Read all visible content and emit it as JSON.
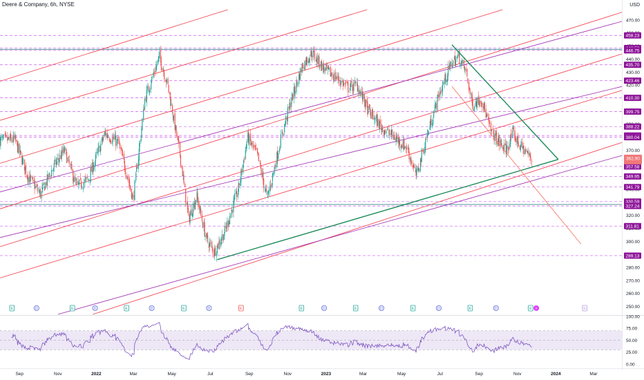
{
  "header": {
    "title": "Deere & Company, 6h, NYSE",
    "currency": "USD"
  },
  "colors": {
    "up": "#26a69a",
    "down": "#ef5350",
    "hline": "#c43cf0",
    "price_tag": "#8e1599",
    "red_channel": "#f23645",
    "violet_channel": "#9c27b0",
    "green_trend": "#1e8c5a",
    "rsi_line": "#7e57c2",
    "rsi_band": "#ede7f6"
  },
  "chart_data": {
    "type": "candlestick",
    "ticker": "Deere & Company",
    "interval": "6h",
    "exchange": "NYSE",
    "ylim": [
      244,
      478
    ],
    "y_ticks": [
      470,
      460,
      450,
      440,
      430,
      420,
      410,
      400,
      390,
      380,
      370,
      360,
      350,
      340,
      330,
      320,
      310,
      300,
      290,
      280,
      270,
      260,
      250
    ],
    "x_labels": [
      "Sep",
      "Nov",
      "2022",
      "Mar",
      "May",
      "Jul",
      "Sep",
      "Nov",
      "2023",
      "Mar",
      "May",
      "Jul",
      "Sep",
      "Nov",
      "2024",
      "Mar"
    ],
    "x_start": "2021-08-01",
    "x_end": "2024-04-15",
    "x_label_dates": [
      "2021-09-01",
      "2021-11-01",
      "2022-01-01",
      "2022-03-01",
      "2022-05-01",
      "2022-07-01",
      "2022-09-01",
      "2022-11-01",
      "2023-01-01",
      "2023-03-01",
      "2023-05-01",
      "2023-07-01",
      "2023-09-01",
      "2023-11-01",
      "2024-01-01",
      "2024-03-01"
    ],
    "last_date": "2023-11-25",
    "price_path": [
      [
        "2021-08-01",
        378
      ],
      [
        "2021-08-25",
        378
      ],
      [
        "2021-09-15",
        350
      ],
      [
        "2021-10-05",
        336
      ],
      [
        "2021-10-25",
        357
      ],
      [
        "2021-11-12",
        370
      ],
      [
        "2021-12-01",
        342
      ],
      [
        "2021-12-20",
        348
      ],
      [
        "2022-01-15",
        383
      ],
      [
        "2022-02-05",
        376
      ],
      [
        "2022-02-20",
        350
      ],
      [
        "2022-03-01",
        332
      ],
      [
        "2022-03-20",
        410
      ],
      [
        "2022-04-12",
        442
      ],
      [
        "2022-04-25",
        420
      ],
      [
        "2022-05-05",
        392
      ],
      [
        "2022-05-15",
        365
      ],
      [
        "2022-05-28",
        317
      ],
      [
        "2022-06-10",
        335
      ],
      [
        "2022-06-25",
        302
      ],
      [
        "2022-07-08",
        292
      ],
      [
        "2022-07-25",
        308
      ],
      [
        "2022-08-15",
        340
      ],
      [
        "2022-08-30",
        380
      ],
      [
        "2022-09-15",
        365
      ],
      [
        "2022-09-30",
        333
      ],
      [
        "2022-10-20",
        375
      ],
      [
        "2022-11-05",
        405
      ],
      [
        "2022-11-25",
        435
      ],
      [
        "2022-12-10",
        445
      ],
      [
        "2022-12-30",
        432
      ],
      [
        "2023-01-20",
        425
      ],
      [
        "2023-02-05",
        418
      ],
      [
        "2023-02-20",
        420
      ],
      [
        "2023-03-10",
        400
      ],
      [
        "2023-03-30",
        388
      ],
      [
        "2023-04-20",
        380
      ],
      [
        "2023-05-10",
        372
      ],
      [
        "2023-05-25",
        350
      ],
      [
        "2023-06-10",
        380
      ],
      [
        "2023-06-30",
        413
      ],
      [
        "2023-07-20",
        437
      ],
      [
        "2023-07-31",
        442
      ],
      [
        "2023-08-12",
        430
      ],
      [
        "2023-08-22",
        405
      ],
      [
        "2023-09-05",
        410
      ],
      [
        "2023-09-20",
        385
      ],
      [
        "2023-10-05",
        375
      ],
      [
        "2023-10-15",
        370
      ],
      [
        "2023-10-25",
        383
      ],
      [
        "2023-11-05",
        374
      ],
      [
        "2023-11-15",
        369
      ],
      [
        "2023-11-25",
        362
      ]
    ],
    "price_levels": [
      458.23,
      448.52,
      446.75,
      435.7,
      423.46,
      410.3,
      399.75,
      388.22,
      381.37,
      380.04,
      357.58,
      349.95,
      341.79,
      330.59,
      327.24,
      311.81,
      289.13
    ],
    "current_price": 362.9,
    "current_price_label": "362.90",
    "current_price_sub": "",
    "red_channel_lines": [
      {
        "p1": [
          "2021-08-01",
          423
        ],
        "p2": [
          "2023-05-01",
          520
        ]
      },
      {
        "p1": [
          "2021-08-01",
          393
        ],
        "p2": [
          "2024-04-15",
          537
        ]
      },
      {
        "p1": [
          "2021-08-01",
          360
        ],
        "p2": [
          "2024-04-15",
          506
        ]
      },
      {
        "p1": [
          "2021-08-01",
          325
        ],
        "p2": [
          "2024-04-15",
          476
        ]
      },
      {
        "p1": [
          "2021-08-01",
          296
        ],
        "p2": [
          "2024-04-15",
          444
        ]
      },
      {
        "p1": [
          "2021-08-01",
          272
        ],
        "p2": [
          "2024-04-15",
          416
        ]
      },
      {
        "p1": [
          "2021-12-01",
          240
        ],
        "p2": [
          "2024-04-15",
          376
        ]
      }
    ],
    "violet_channel_lines": [
      {
        "p1": [
          "2021-08-01",
          338
        ],
        "p2": [
          "2024-04-15",
          469
        ]
      },
      {
        "p1": [
          "2021-08-01",
          303
        ],
        "p2": [
          "2024-04-15",
          419
        ]
      },
      {
        "p1": [
          "2021-11-01",
          244
        ],
        "p2": [
          "2024-04-15",
          366
        ]
      }
    ],
    "green_trendlines": [
      {
        "p1": [
          "2022-07-12",
          286
        ],
        "p2": [
          "2024-01-05",
          363
        ]
      },
      {
        "p1": [
          "2023-07-20",
          451
        ],
        "p2": [
          "2024-01-05",
          363
        ]
      }
    ],
    "orange_projection": {
      "p1": [
        "2023-07-20",
        419
      ],
      "p2": [
        "2024-02-10",
        298
      ]
    },
    "teal_horizontal_levels": [
      447.6,
      328.4
    ],
    "earnings_markers": [
      {
        "date": "2021-08-20",
        "label": "E",
        "kind": "earnings"
      },
      {
        "date": "2021-09-28",
        "label": "D",
        "kind": "dividend"
      },
      {
        "date": "2021-11-24",
        "label": "E",
        "kind": "earnings"
      },
      {
        "date": "2021-12-30",
        "label": "D",
        "kind": "dividend"
      },
      {
        "date": "2022-02-18",
        "label": "E",
        "kind": "earnings"
      },
      {
        "date": "2022-03-30",
        "label": "D",
        "kind": "dividend"
      },
      {
        "date": "2022-05-20",
        "label": "E",
        "kind": "earnings"
      },
      {
        "date": "2022-06-29",
        "label": "D",
        "kind": "dividend"
      },
      {
        "date": "2022-08-19",
        "label": "E",
        "kind": "earnings-miss"
      },
      {
        "date": "2022-11-23",
        "label": "E",
        "kind": "earnings"
      },
      {
        "date": "2022-12-29",
        "label": "D",
        "kind": "dividend"
      },
      {
        "date": "2023-02-17",
        "label": "E",
        "kind": "earnings"
      },
      {
        "date": "2023-03-30",
        "label": "D",
        "kind": "dividend"
      },
      {
        "date": "2023-05-19",
        "label": "E",
        "kind": "earnings"
      },
      {
        "date": "2023-06-29",
        "label": "D",
        "kind": "dividend"
      },
      {
        "date": "2023-08-18",
        "label": "E",
        "kind": "earnings"
      },
      {
        "date": "2023-09-28",
        "label": "D",
        "kind": "dividend"
      },
      {
        "date": "2023-11-22",
        "label": "E",
        "kind": "earnings"
      },
      {
        "date": "2023-12-01",
        "label": "⚡",
        "kind": "event"
      },
      {
        "date": "2024-02-16",
        "label": "E",
        "kind": "future-earnings"
      }
    ],
    "rsi": {
      "ylim": [
        0,
        100
      ],
      "y_ticks": [
        100,
        75,
        50,
        25,
        0
      ],
      "y_tick_labels": [
        "100.00",
        "75.00",
        "50.00",
        "25.00",
        "0.00"
      ],
      "band": [
        30,
        70
      ],
      "midline": 50
    }
  }
}
